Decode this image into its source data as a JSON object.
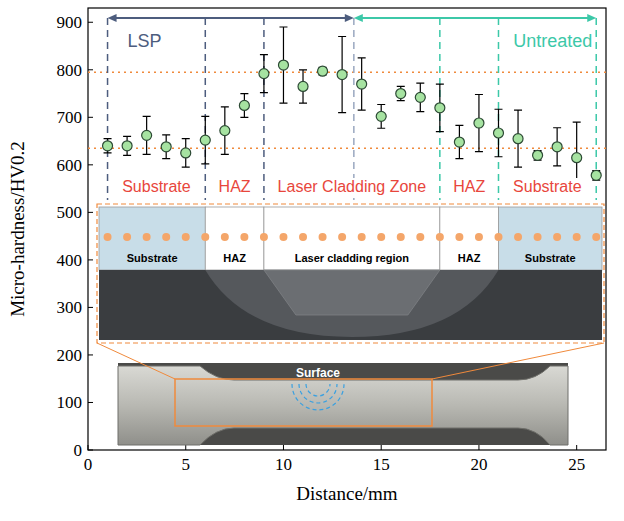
{
  "chart_data": {
    "type": "scatter",
    "x_label": "Distance/mm",
    "y_label": "Micro-hardness/HV0.2",
    "x": [
      1,
      2,
      3,
      4,
      5,
      6,
      7,
      8,
      9,
      10,
      11,
      12,
      13,
      14,
      15,
      16,
      17,
      18,
      19,
      20,
      21,
      22,
      23,
      24,
      25,
      26
    ],
    "values": [
      640,
      640,
      662,
      638,
      625,
      652,
      672,
      725,
      792,
      810,
      765,
      797,
      790,
      770,
      702,
      750,
      742,
      720,
      648,
      688,
      667,
      655,
      620,
      638,
      615,
      578
    ],
    "errors": [
      15,
      20,
      40,
      25,
      30,
      50,
      50,
      25,
      40,
      80,
      35,
      8,
      80,
      55,
      25,
      15,
      30,
      50,
      35,
      60,
      50,
      60,
      10,
      40,
      75,
      10
    ],
    "color": "#a6e3a1",
    "marker": "circle",
    "xlim": [
      0,
      26.5
    ],
    "ylim": [
      0,
      930
    ],
    "xticks": [
      0,
      5,
      10,
      15,
      20,
      25
    ],
    "yticks": [
      0,
      100,
      200,
      300,
      400,
      500,
      600,
      700,
      800,
      900
    ],
    "grid": false,
    "reference_lines": [
      795,
      635
    ],
    "zones": {
      "boundaries": [
        1,
        6,
        9,
        18,
        21,
        26
      ],
      "labels": [
        "Substrate",
        "HAZ",
        "Laser Cladding Zone",
        "HAZ",
        "Substrate"
      ]
    },
    "treatment": {
      "split": 13.6,
      "labels": [
        "LSP",
        "Untreated"
      ]
    },
    "schematic": {
      "labels": [
        "Substrate",
        "HAZ",
        "Laser cladding region",
        "HAZ",
        "Substrate"
      ],
      "photo_label": "Surface"
    }
  }
}
